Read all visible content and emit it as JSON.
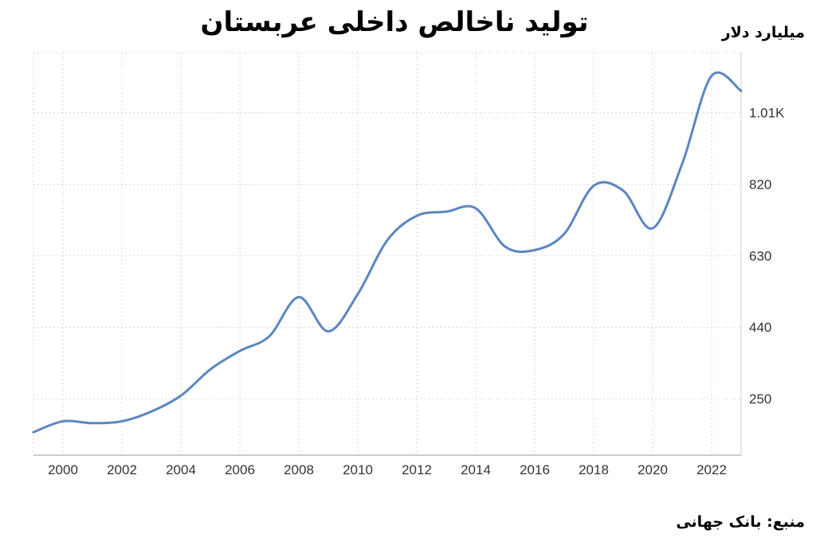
{
  "chart_data": {
    "type": "line",
    "title": "تولید ناخالص داخلی عربستان",
    "ylabel": "میلیارد دلار",
    "source": "منبع: بانک جهانی",
    "x": [
      1999,
      2000,
      2001,
      2002,
      2003,
      2004,
      2005,
      2006,
      2007,
      2008,
      2009,
      2010,
      2011,
      2012,
      2013,
      2014,
      2015,
      2016,
      2017,
      2018,
      2019,
      2020,
      2021,
      2022,
      2023
    ],
    "series": [
      {
        "values": [
          161,
          190,
          185,
          190,
          216,
          258,
          328,
          377,
          416,
          520,
          429,
          528,
          671,
          736,
          747,
          756,
          654,
          645,
          688,
          816,
          803,
          703,
          874,
          1108,
          1068
        ]
      }
    ],
    "x_ticks": [
      2000,
      2002,
      2004,
      2006,
      2008,
      2010,
      2012,
      2014,
      2016,
      2018,
      2020,
      2022
    ],
    "y_ticks": [
      250,
      440,
      630,
      820,
      1010
    ],
    "y_tick_labels": [
      "250",
      "440",
      "630",
      "820",
      "1.01K"
    ],
    "xlim": [
      1999,
      2023
    ],
    "ylim": [
      100,
      1170
    ],
    "grid": true,
    "line_color": "#5b86c0",
    "grid_color": "#d6d6d6"
  }
}
